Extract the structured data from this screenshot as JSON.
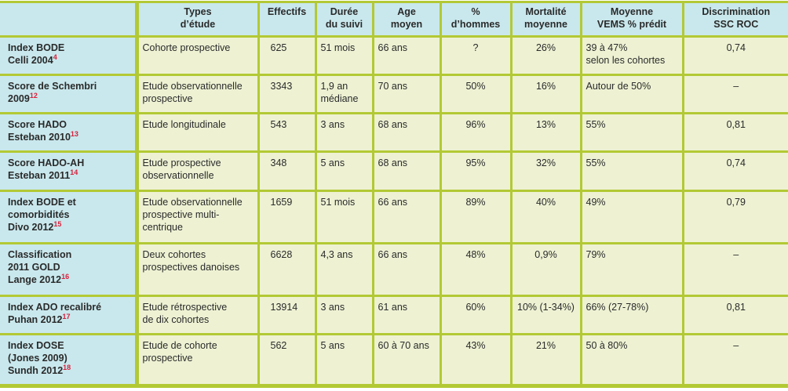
{
  "headers": [
    "",
    "Types\nd’étude",
    "Effectifs",
    "Durée\ndu suivi",
    "Age\nmoyen",
    "%\nd’hommes",
    "Mortalité\nmoyenne",
    "Moyenne\nVEMS % prédit",
    "Discrimination\nSSC ROC"
  ],
  "header_lines": [
    [],
    [
      "Types",
      "d’étude"
    ],
    [
      "Effectifs"
    ],
    [
      "Durée",
      "du suivi"
    ],
    [
      "Age",
      "moyen"
    ],
    [
      "%",
      "d’hommes"
    ],
    [
      "Mortalité",
      "moyenne"
    ],
    [
      "Moyenne",
      "VEMS % prédit"
    ],
    [
      "Discrimination",
      "SSC ROC"
    ]
  ],
  "rows": [
    {
      "name": [
        "Index BODE",
        "Celli 2004"
      ],
      "ref": "4",
      "type": [
        "Cohorte prospective"
      ],
      "effectifs": "625",
      "duree": [
        "51 mois"
      ],
      "age": "66 ans",
      "hommes": "?",
      "mortalite": "26%",
      "vems": [
        "39 à 47%",
        "selon les cohortes"
      ],
      "roc": "0,74"
    },
    {
      "name": [
        "Score de Schembri",
        "2009"
      ],
      "ref": "12",
      "type": [
        "Etude observationnelle",
        "prospective"
      ],
      "effectifs": "3343",
      "duree": [
        "1,9 an",
        "médiane"
      ],
      "age": "70 ans",
      "hommes": "50%",
      "mortalite": "16%",
      "vems": [
        "Autour de 50%"
      ],
      "roc": "–"
    },
    {
      "name": [
        "Score HADO",
        "Esteban 2010"
      ],
      "ref": "13",
      "type": [
        "Etude longitudinale"
      ],
      "effectifs": "543",
      "duree": [
        "3 ans"
      ],
      "age": "68 ans",
      "hommes": "96%",
      "mortalite": "13%",
      "vems": [
        "55%"
      ],
      "roc": "0,81"
    },
    {
      "name": [
        "Score HADO-AH",
        "Esteban 2011"
      ],
      "ref": "14",
      "type": [
        "Etude prospective",
        "observationnelle"
      ],
      "effectifs": "348",
      "duree": [
        "5 ans"
      ],
      "age": "68 ans",
      "hommes": "95%",
      "mortalite": "32%",
      "vems": [
        "55%"
      ],
      "roc": "0,74"
    },
    {
      "name": [
        "Index BODE et",
        "comorbidités",
        "Divo 2012"
      ],
      "ref": "15",
      "type": [
        "Etude observationnelle",
        "prospective multi-",
        "centrique"
      ],
      "effectifs": "1659",
      "duree": [
        "51 mois"
      ],
      "age": "66 ans",
      "hommes": "89%",
      "mortalite": "40%",
      "vems": [
        "49%"
      ],
      "roc": "0,79"
    },
    {
      "name": [
        "Classification",
        "2011 GOLD",
        "Lange 2012"
      ],
      "ref": "16",
      "type": [
        "Deux cohortes",
        "prospectives danoises"
      ],
      "effectifs": "6628",
      "duree": [
        "4,3 ans"
      ],
      "age": "66 ans",
      "hommes": "48%",
      "mortalite": "0,9%",
      "vems": [
        "79%"
      ],
      "roc": "–"
    },
    {
      "name": [
        "Index ADO recalibré",
        "Puhan 2012"
      ],
      "ref": "17",
      "type": [
        "Etude rétrospective",
        "de dix cohortes"
      ],
      "effectifs": "13914",
      "duree": [
        "3 ans"
      ],
      "age": "61 ans",
      "hommes": "60%",
      "mortalite": "10% (1-34%)",
      "vems": [
        "66% (27-78%)"
      ],
      "roc": "0,81"
    },
    {
      "name": [
        "Index DOSE",
        "(Jones 2009)",
        "Sundh 2012"
      ],
      "ref": "18",
      "type": [
        "Etude de cohorte",
        "prospective"
      ],
      "effectifs": "562",
      "duree": [
        "5 ans"
      ],
      "age": "60 à 70 ans",
      "hommes": "43%",
      "mortalite": "21%",
      "vems": [
        "50 à 80%"
      ],
      "roc": "–"
    }
  ],
  "colors": {
    "border": "#b3c934",
    "header_bg": "#c9e8ed",
    "body_bg": "#eef2d3",
    "reference": "#d8203c"
  }
}
